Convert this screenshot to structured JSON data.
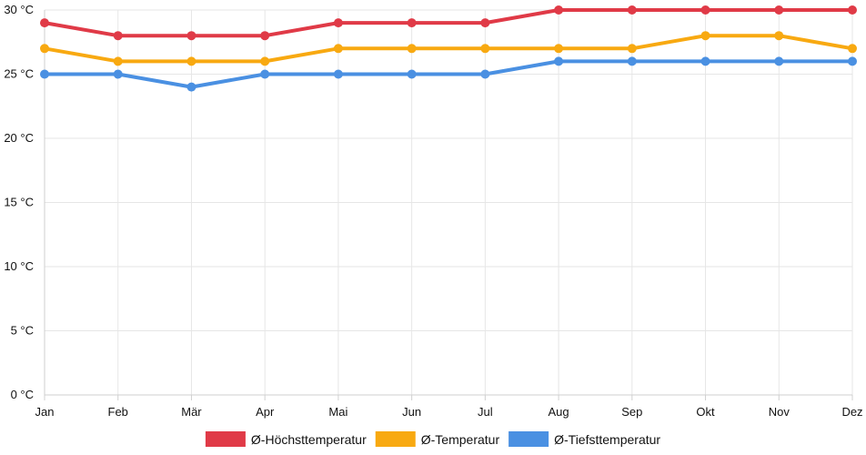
{
  "chart_data": {
    "type": "line",
    "categories": [
      "Jan",
      "Feb",
      "Mär",
      "Apr",
      "Mai",
      "Jun",
      "Jul",
      "Aug",
      "Sep",
      "Okt",
      "Nov",
      "Dez"
    ],
    "y_ticks": [
      "0 °C",
      "5 °C",
      "10 °C",
      "15 °C",
      "20 °C",
      "25 °C",
      "30 °C"
    ],
    "ylim": [
      0,
      30
    ],
    "y_step": 5,
    "grid": true,
    "legend_position": "bottom",
    "series": [
      {
        "name": "Ø-Höchsttemperatur",
        "color": "#e03a47",
        "values": [
          29,
          28,
          28,
          28,
          29,
          29,
          29,
          30,
          30,
          30,
          30,
          30
        ]
      },
      {
        "name": "Ø-Temperatur",
        "color": "#f8a911",
        "values": [
          27,
          26,
          26,
          26,
          27,
          27,
          27,
          27,
          27,
          28,
          28,
          27
        ]
      },
      {
        "name": "Ø-Tiefsttemperatur",
        "color": "#4a90e2",
        "values": [
          25,
          25,
          24,
          25,
          25,
          25,
          25,
          26,
          26,
          26,
          26,
          26
        ]
      }
    ]
  }
}
